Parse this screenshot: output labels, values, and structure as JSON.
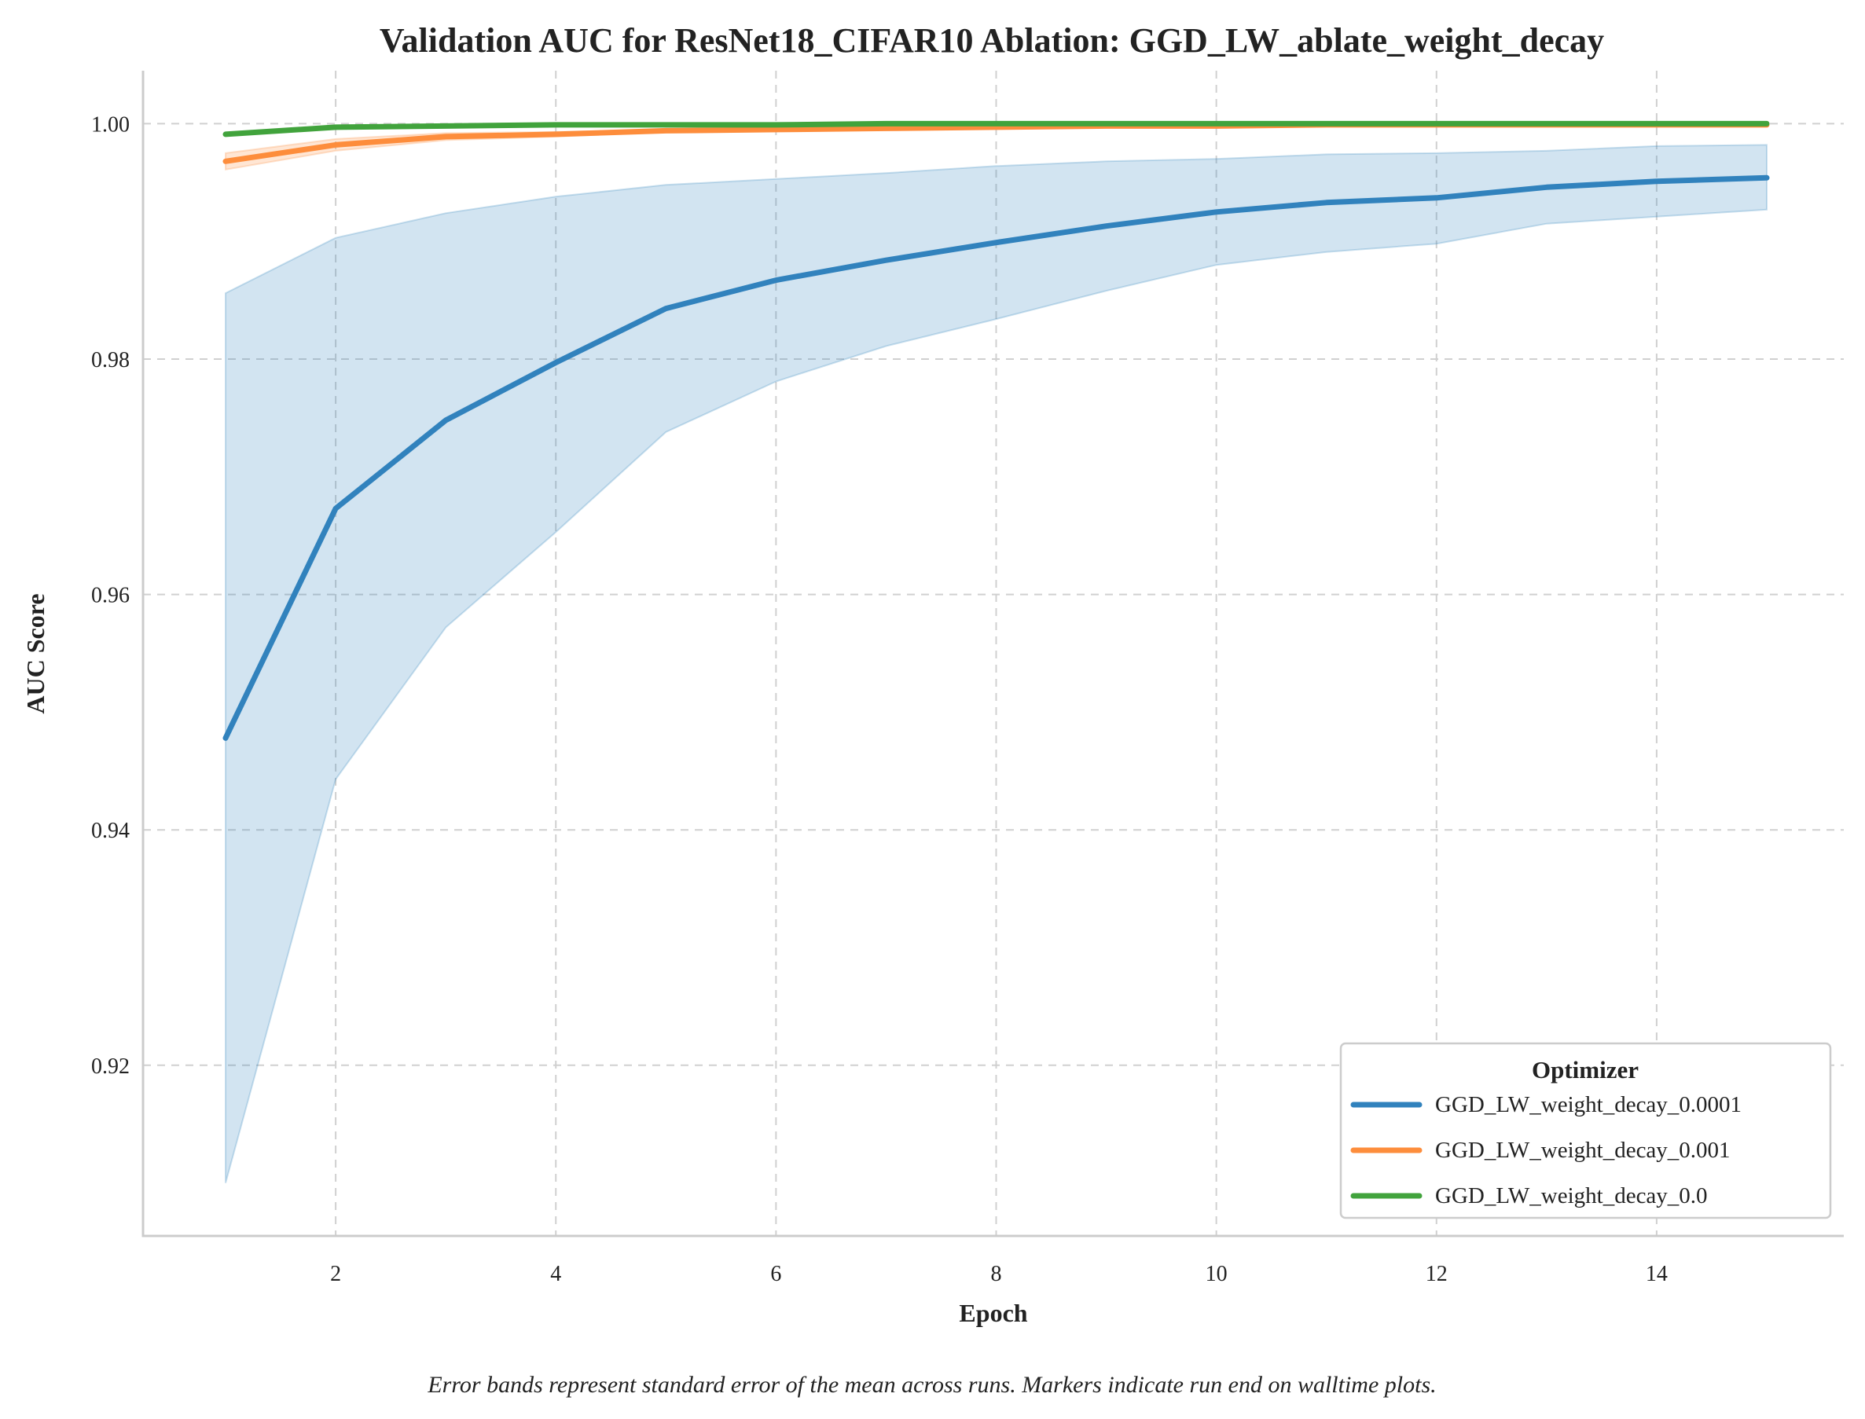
{
  "chart_data": {
    "type": "line",
    "title": "Validation AUC for ResNet18_CIFAR10 Ablation: GGD_LW_ablate_weight_decay",
    "xlabel": "Epoch",
    "ylabel": "AUC Score",
    "xlim": [
      0.25,
      15.7
    ],
    "ylim": [
      0.9055,
      1.0045
    ],
    "x_ticks": [
      2,
      4,
      6,
      8,
      10,
      12,
      14
    ],
    "y_ticks": [
      0.92,
      0.94,
      0.96,
      0.98,
      1.0
    ],
    "x_tick_labels": [
      "2",
      "4",
      "6",
      "8",
      "10",
      "12",
      "14"
    ],
    "y_tick_labels": [
      "0.92",
      "0.94",
      "0.96",
      "0.98",
      "1.00"
    ],
    "grid": true,
    "legend": {
      "title": "Optimizer",
      "placement": "lower-right"
    },
    "x": [
      1,
      2,
      3,
      4,
      5,
      6,
      7,
      8,
      9,
      10,
      11,
      12,
      13,
      14,
      15
    ],
    "series": [
      {
        "name": "GGD_LW_weight_decay_0.0001",
        "color": "#3182bd",
        "values": [
          0.9478,
          0.9673,
          0.9748,
          0.9797,
          0.9843,
          0.9867,
          0.9884,
          0.9899,
          0.9913,
          0.9925,
          0.9933,
          0.9937,
          0.9946,
          0.9951,
          0.9954
        ],
        "lower": [
          0.91,
          0.9443,
          0.9572,
          0.9653,
          0.9738,
          0.9781,
          0.9811,
          0.9834,
          0.9858,
          0.988,
          0.9891,
          0.9898,
          0.9915,
          0.9921,
          0.9927
        ],
        "upper": [
          0.9856,
          0.9903,
          0.9924,
          0.9938,
          0.9948,
          0.9953,
          0.9958,
          0.9964,
          0.9968,
          0.997,
          0.9974,
          0.9975,
          0.9977,
          0.9981,
          0.9982
        ]
      },
      {
        "name": "GGD_LW_weight_decay_0.001",
        "color": "#fd8d3c",
        "values": [
          0.9968,
          0.9982,
          0.9989,
          0.9991,
          0.9994,
          0.9995,
          0.9996,
          0.9997,
          0.9998,
          0.9998,
          0.9999,
          0.9999,
          0.9999,
          0.9999,
          0.9999
        ],
        "lower": [
          0.9961,
          0.9977,
          0.9986,
          0.9989,
          0.9993,
          0.9994,
          0.9995,
          0.9996,
          0.9997,
          0.9997,
          0.9998,
          0.9998,
          0.9998,
          0.9998,
          0.9998
        ],
        "upper": [
          0.9975,
          0.9987,
          0.9992,
          0.9993,
          0.9995,
          0.9996,
          0.9997,
          0.9998,
          0.9999,
          0.9999,
          1.0,
          1.0,
          1.0,
          1.0,
          1.0
        ]
      },
      {
        "name": "GGD_LW_weight_decay_0.0",
        "color": "#41a33c",
        "values": [
          0.9991,
          0.9997,
          0.9998,
          0.9999,
          0.9999,
          0.9999,
          1.0,
          1.0,
          1.0,
          1.0,
          1.0,
          1.0,
          1.0,
          1.0,
          1.0
        ],
        "lower": [
          0.999,
          0.9996,
          0.9997,
          0.9998,
          0.9998,
          0.9999,
          0.9999,
          0.9999,
          0.9999,
          0.9999,
          1.0,
          1.0,
          1.0,
          1.0,
          1.0
        ],
        "upper": [
          0.9992,
          0.9998,
          0.9999,
          1.0,
          1.0,
          1.0,
          1.0,
          1.0,
          1.0,
          1.0,
          1.0,
          1.0,
          1.0,
          1.0,
          1.0
        ]
      }
    ],
    "caption": "Error bands represent standard error of the mean across runs. Markers indicate run end on walltime plots."
  }
}
